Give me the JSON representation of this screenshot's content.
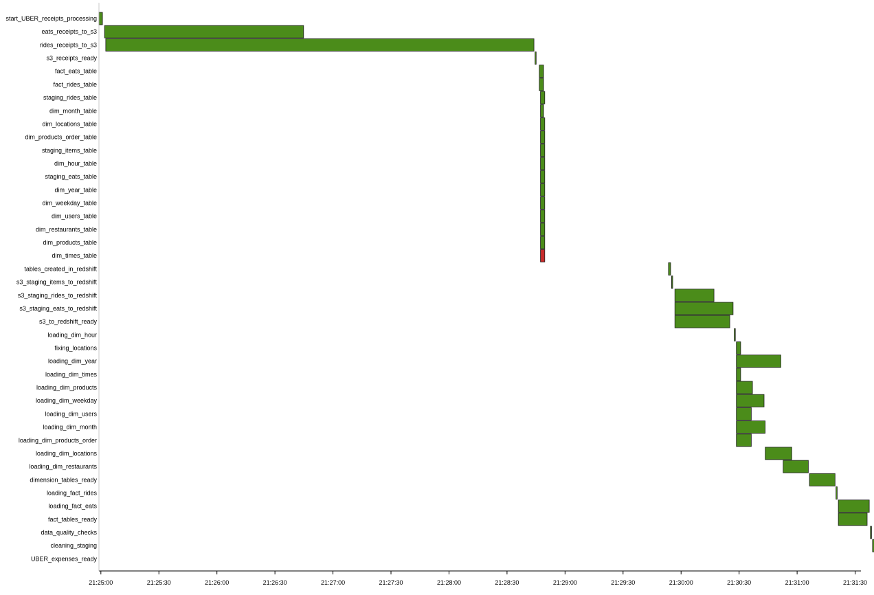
{
  "colors": {
    "success": "#4b8c1a",
    "failed": "#c72b2b",
    "bar_stroke": "#1a1a1a",
    "axis": "#000000"
  },
  "chart_data": {
    "type": "gantt",
    "title": "",
    "xlabel": "",
    "ylabel": "",
    "x_unit": "time of day (HH:MM:SS)",
    "xlim": [
      "21:24:59",
      "21:31:33"
    ],
    "x_ticks": [
      "21:25:00",
      "21:25:30",
      "21:26:00",
      "21:26:30",
      "21:27:00",
      "21:27:30",
      "21:28:00",
      "21:28:30",
      "21:29:00",
      "21:29:30",
      "21:30:00",
      "21:30:30",
      "21:31:00",
      "21:31:30"
    ],
    "legend": "none",
    "grid": false,
    "tasks": [
      {
        "name": "start_UBER_receipts_processing",
        "start": "21:24:59.0",
        "end": "21:25:00.8",
        "state": "success"
      },
      {
        "name": "eats_receipts_to_s3",
        "start": "21:25:01.9",
        "end": "21:26:44.8",
        "state": "success"
      },
      {
        "name": "rides_receipts_to_s3",
        "start": "21:25:02.5",
        "end": "21:28:43.9",
        "state": "success"
      },
      {
        "name": "s3_receipts_ready",
        "start": "21:28:44.5",
        "end": "21:28:44.9",
        "state": "success"
      },
      {
        "name": "fact_eats_table",
        "start": "21:28:46.7",
        "end": "21:28:48.9",
        "state": "success"
      },
      {
        "name": "fact_rides_table",
        "start": "21:28:46.7",
        "end": "21:28:48.9",
        "state": "success"
      },
      {
        "name": "staging_rides_table",
        "start": "21:28:47.3",
        "end": "21:28:49.5",
        "state": "success"
      },
      {
        "name": "dim_month_table",
        "start": "21:28:47.3",
        "end": "21:28:48.9",
        "state": "success"
      },
      {
        "name": "dim_locations_table",
        "start": "21:28:47.3",
        "end": "21:28:49.5",
        "state": "success"
      },
      {
        "name": "dim_products_order_table",
        "start": "21:28:47.3",
        "end": "21:28:49.5",
        "state": "success"
      },
      {
        "name": "staging_items_table",
        "start": "21:28:47.3",
        "end": "21:28:49.5",
        "state": "success"
      },
      {
        "name": "dim_hour_table",
        "start": "21:28:47.3",
        "end": "21:28:49.5",
        "state": "success"
      },
      {
        "name": "staging_eats_table",
        "start": "21:28:47.3",
        "end": "21:28:49.5",
        "state": "success"
      },
      {
        "name": "dim_year_table",
        "start": "21:28:47.3",
        "end": "21:28:49.5",
        "state": "success"
      },
      {
        "name": "dim_weekday_table",
        "start": "21:28:47.3",
        "end": "21:28:49.5",
        "state": "success"
      },
      {
        "name": "dim_users_table",
        "start": "21:28:47.3",
        "end": "21:28:49.5",
        "state": "success"
      },
      {
        "name": "dim_restaurants_table",
        "start": "21:28:47.3",
        "end": "21:28:49.5",
        "state": "success"
      },
      {
        "name": "dim_products_table",
        "start": "21:28:47.3",
        "end": "21:28:49.5",
        "state": "success"
      },
      {
        "name": "dim_times_table",
        "start": "21:28:47.3",
        "end": "21:28:49.5",
        "state": "failed"
      },
      {
        "name": "tables_created_in_redshift",
        "start": "21:29:53.5",
        "end": "21:29:54.6",
        "state": "success"
      },
      {
        "name": "s3_staging_items_to_redshift",
        "start": "21:29:55.1",
        "end": "21:29:55.6",
        "state": "success"
      },
      {
        "name": "s3_staging_rides_to_redshift",
        "start": "21:29:56.8",
        "end": "21:30:17.0",
        "state": "success"
      },
      {
        "name": "s3_staging_eats_to_redshift",
        "start": "21:29:56.8",
        "end": "21:30:26.9",
        "state": "success"
      },
      {
        "name": "s3_to_redshift_ready",
        "start": "21:29:56.8",
        "end": "21:30:25.2",
        "state": "success"
      },
      {
        "name": "loading_dim_hour",
        "start": "21:30:27.5",
        "end": "21:30:28.0",
        "state": "success"
      },
      {
        "name": "fixing_locations",
        "start": "21:30:28.6",
        "end": "21:30:30.8",
        "state": "success"
      },
      {
        "name": "loading_dim_year",
        "start": "21:30:28.6",
        "end": "21:30:51.6",
        "state": "success"
      },
      {
        "name": "loading_dim_times",
        "start": "21:30:28.6",
        "end": "21:30:30.8",
        "state": "success"
      },
      {
        "name": "loading_dim_products",
        "start": "21:30:28.6",
        "end": "21:30:36.9",
        "state": "success"
      },
      {
        "name": "loading_dim_weekday",
        "start": "21:30:28.6",
        "end": "21:30:42.9",
        "state": "success"
      },
      {
        "name": "loading_dim_users",
        "start": "21:30:28.6",
        "end": "21:30:36.3",
        "state": "success"
      },
      {
        "name": "loading_dim_month",
        "start": "21:30:28.6",
        "end": "21:30:43.5",
        "state": "success"
      },
      {
        "name": "loading_dim_products_order",
        "start": "21:30:28.6",
        "end": "21:30:36.3",
        "state": "success"
      },
      {
        "name": "loading_dim_locations",
        "start": "21:30:43.5",
        "end": "21:30:57.2",
        "state": "success"
      },
      {
        "name": "loading_dim_restaurants",
        "start": "21:30:52.8",
        "end": "21:31:05.8",
        "state": "success"
      },
      {
        "name": "dimension_tables_ready",
        "start": "21:31:06.4",
        "end": "21:31:19.6",
        "state": "success"
      },
      {
        "name": "loading_fact_rides",
        "start": "21:31:20.1",
        "end": "21:31:20.7",
        "state": "success"
      },
      {
        "name": "loading_fact_eats",
        "start": "21:31:21.3",
        "end": "21:31:37.3",
        "state": "success"
      },
      {
        "name": "fact_tables_ready",
        "start": "21:31:21.3",
        "end": "21:31:36.2",
        "state": "success"
      },
      {
        "name": "data_quality_checks",
        "start": "21:31:37.9",
        "end": "21:31:38.4",
        "state": "success"
      },
      {
        "name": "cleaning_staging",
        "start": "21:31:39.0",
        "end": "21:31:41.2",
        "state": "success"
      },
      {
        "name": "UBER_expenses_ready",
        "start": "21:31:41.8",
        "end": "21:31:43.4",
        "state": "success"
      }
    ]
  }
}
